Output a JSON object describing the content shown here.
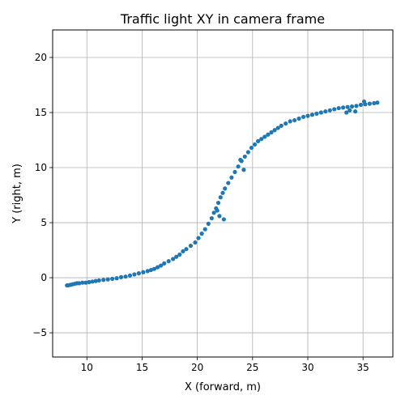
{
  "chart_data": {
    "type": "scatter",
    "title": "Traffic light XY in camera frame",
    "xlabel": "X (forward, m)",
    "ylabel": "Y (right, m)",
    "xlim": [
      6.9,
      37.7
    ],
    "ylim": [
      -7.2,
      22.5
    ],
    "xticks": [
      10,
      15,
      20,
      25,
      30,
      35
    ],
    "yticks": [
      -5,
      0,
      5,
      10,
      15,
      20
    ],
    "grid": true,
    "marker_color": "#1f77b4",
    "series": [
      {
        "x": [
          8.2,
          8.3,
          8.5,
          8.7,
          8.9,
          9.1,
          9.3,
          9.6,
          9.9,
          10.2,
          10.5,
          10.8,
          11.1,
          11.5,
          11.9,
          12.3,
          12.7,
          13.1,
          13.5,
          13.9,
          14.3,
          14.7,
          15.1,
          15.5,
          15.8,
          16.1,
          16.4,
          16.7,
          17.0,
          17.4,
          17.8,
          18.1,
          18.4,
          18.7,
          19.0,
          19.4,
          19.8,
          20.1,
          20.4,
          20.7,
          21.0,
          21.3,
          21.5,
          21.7,
          21.9,
          22.1,
          22.3,
          22.5,
          22.8,
          23.1,
          23.4,
          23.7,
          24.0,
          24.3,
          24.6,
          24.9,
          25.2,
          25.5,
          25.8,
          26.1,
          26.4,
          26.7,
          27.0,
          27.3,
          27.6,
          28.0,
          28.4,
          28.8,
          29.2,
          29.6,
          30.0,
          30.4,
          30.8,
          31.2,
          31.6,
          32.0,
          32.4,
          32.8,
          33.2,
          33.6,
          34.0,
          34.4,
          34.8,
          35.2,
          35.6,
          36.0,
          36.3,
          33.5,
          34.3,
          35.1,
          33.8,
          22.0,
          22.4,
          21.8,
          24.2,
          23.9
        ],
        "y": [
          -0.7,
          -0.7,
          -0.65,
          -0.6,
          -0.55,
          -0.5,
          -0.5,
          -0.45,
          -0.45,
          -0.4,
          -0.35,
          -0.3,
          -0.25,
          -0.2,
          -0.15,
          -0.1,
          -0.05,
          0.05,
          0.1,
          0.2,
          0.3,
          0.4,
          0.5,
          0.6,
          0.7,
          0.8,
          0.95,
          1.1,
          1.3,
          1.5,
          1.7,
          1.9,
          2.1,
          2.4,
          2.6,
          2.9,
          3.2,
          3.6,
          4.0,
          4.4,
          4.9,
          5.4,
          5.9,
          6.3,
          6.8,
          7.3,
          7.7,
          8.1,
          8.6,
          9.1,
          9.6,
          10.1,
          10.6,
          11.0,
          11.4,
          11.8,
          12.1,
          12.4,
          12.6,
          12.8,
          13.0,
          13.2,
          13.4,
          13.6,
          13.8,
          14.0,
          14.2,
          14.3,
          14.45,
          14.6,
          14.7,
          14.8,
          14.9,
          15.0,
          15.1,
          15.2,
          15.3,
          15.4,
          15.45,
          15.5,
          15.55,
          15.6,
          15.7,
          15.75,
          15.8,
          15.85,
          15.9,
          15.0,
          15.1,
          16.0,
          15.2,
          5.6,
          5.3,
          6.1,
          9.8,
          10.7
        ]
      }
    ]
  }
}
